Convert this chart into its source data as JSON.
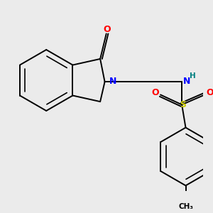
{
  "background_color": "#ebebeb",
  "atom_colors": {
    "C": "#000000",
    "N": "#0000ff",
    "O": "#ff0000",
    "S": "#cccc00",
    "H": "#008080"
  },
  "bond_color": "#000000",
  "figsize": [
    3.0,
    3.0
  ],
  "dpi": 100
}
